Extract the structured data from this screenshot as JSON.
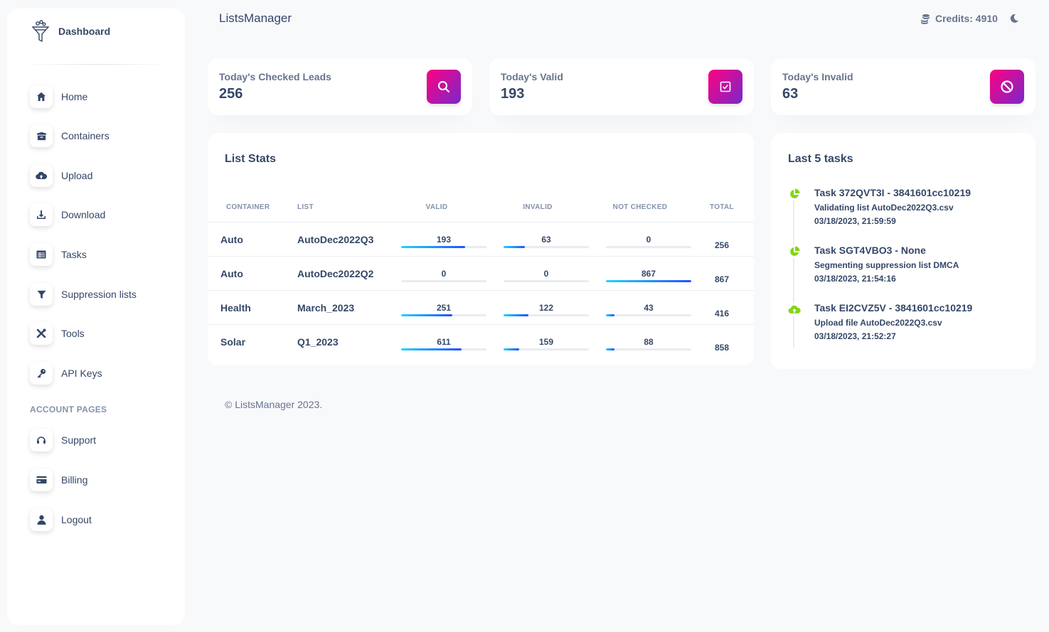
{
  "brand": {
    "name": "Dashboard"
  },
  "app_title": "ListsManager",
  "credits": {
    "label": "Credits: 4910"
  },
  "sidebar": {
    "items": [
      {
        "label": "Home",
        "icon": "home-icon"
      },
      {
        "label": "Containers",
        "icon": "box-icon"
      },
      {
        "label": "Upload",
        "icon": "cloud-upload-icon"
      },
      {
        "label": "Download",
        "icon": "download-icon"
      },
      {
        "label": "Tasks",
        "icon": "table-icon"
      },
      {
        "label": "Suppression lists",
        "icon": "filter-icon"
      },
      {
        "label": "Tools",
        "icon": "tools-icon"
      },
      {
        "label": "API Keys",
        "icon": "key-icon"
      }
    ],
    "account_section_title": "ACCOUNT PAGES",
    "account_items": [
      {
        "label": "Support",
        "icon": "headset-icon"
      },
      {
        "label": "Billing",
        "icon": "credit-card-icon"
      },
      {
        "label": "Logout",
        "icon": "user-icon"
      }
    ]
  },
  "stats": [
    {
      "label": "Today's Checked Leads",
      "value": "256",
      "icon": "search-icon"
    },
    {
      "label": "Today's Valid",
      "value": "193",
      "icon": "check-square-icon"
    },
    {
      "label": "Today's Invalid",
      "value": "63",
      "icon": "ban-icon"
    }
  ],
  "list_stats": {
    "title": "List Stats",
    "headers": {
      "container": "CONTAINER",
      "list": "LIST",
      "valid": "VALID",
      "invalid": "INVALID",
      "not_checked": "NOT CHECKED",
      "total": "TOTAL"
    },
    "rows": [
      {
        "container": "Auto",
        "list": "AutoDec2022Q3",
        "valid": "193",
        "invalid": "63",
        "not_checked": "0",
        "total": "256",
        "valid_frac": 0.754,
        "invalid_frac": 0.246,
        "not_checked_frac": 0.0
      },
      {
        "container": "Auto",
        "list": "AutoDec2022Q2",
        "valid": "0",
        "invalid": "0",
        "not_checked": "867",
        "total": "867",
        "valid_frac": 0.0,
        "invalid_frac": 0.0,
        "not_checked_frac": 1.0
      },
      {
        "container": "Health",
        "list": "March_2023",
        "valid": "251",
        "invalid": "122",
        "not_checked": "43",
        "total": "416",
        "valid_frac": 0.603,
        "invalid_frac": 0.293,
        "not_checked_frac": 0.103
      },
      {
        "container": "Solar",
        "list": "Q1_2023",
        "valid": "611",
        "invalid": "159",
        "not_checked": "88",
        "total": "858",
        "valid_frac": 0.712,
        "invalid_frac": 0.185,
        "not_checked_frac": 0.103
      }
    ]
  },
  "tasks": {
    "title": "Last 5 tasks",
    "items": [
      {
        "title": "Task 372QVT3I - 3841601cc10219",
        "desc": "Validating list AutoDec2022Q3.csv",
        "time": "03/18/2023, 21:59:59",
        "icon": "pie-chart-icon"
      },
      {
        "title": "Task SGT4VBO3 - None",
        "desc": "Segmenting suppression list DMCA",
        "time": "03/18/2023, 21:54:16",
        "icon": "pie-chart-icon"
      },
      {
        "title": "Task EI2CVZ5V - 3841601cc10219",
        "desc": "Upload file AutoDec2022Q3.csv",
        "time": "03/18/2023, 21:52:27",
        "icon": "cloud-upload-icon"
      }
    ]
  },
  "footer": "© ListsManager 2023.",
  "colors": {
    "accent_gradient_start": "#7928ca",
    "accent_gradient_end": "#ff0080",
    "bar_start": "#21d4fd",
    "bar_end": "#2152ff",
    "task_icon": "#82d616"
  }
}
